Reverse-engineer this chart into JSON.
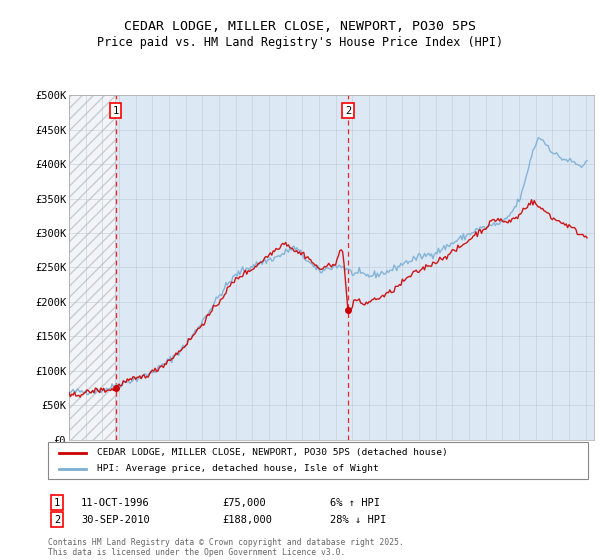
{
  "title": "CEDAR LODGE, MILLER CLOSE, NEWPORT, PO30 5PS",
  "subtitle": "Price paid vs. HM Land Registry's House Price Index (HPI)",
  "ylim": [
    0,
    500000
  ],
  "yticks": [
    0,
    50000,
    100000,
    150000,
    200000,
    250000,
    300000,
    350000,
    400000,
    450000,
    500000
  ],
  "ytick_labels": [
    "£0",
    "£50K",
    "£100K",
    "£150K",
    "£200K",
    "£250K",
    "£300K",
    "£350K",
    "£400K",
    "£450K",
    "£500K"
  ],
  "xlim_start": 1994.0,
  "xlim_end": 2025.5,
  "sale1_x": 1996.79,
  "sale1_y": 75000,
  "sale1_label": "1",
  "sale1_date": "11-OCT-1996",
  "sale1_price": "£75,000",
  "sale1_hpi": "6% ↑ HPI",
  "sale2_x": 2010.75,
  "sale2_y": 188000,
  "sale2_label": "2",
  "sale2_date": "30-SEP-2010",
  "sale2_price": "£188,000",
  "sale2_hpi": "28% ↓ HPI",
  "line_color_price": "#cc0000",
  "line_color_hpi": "#7bafd4",
  "background_color": "#dde8f5",
  "grid_color": "#b0bec5",
  "legend_label1": "CEDAR LODGE, MILLER CLOSE, NEWPORT, PO30 5PS (detached house)",
  "legend_label2": "HPI: Average price, detached house, Isle of Wight",
  "footnote": "Contains HM Land Registry data © Crown copyright and database right 2025.\nThis data is licensed under the Open Government Licence v3.0."
}
